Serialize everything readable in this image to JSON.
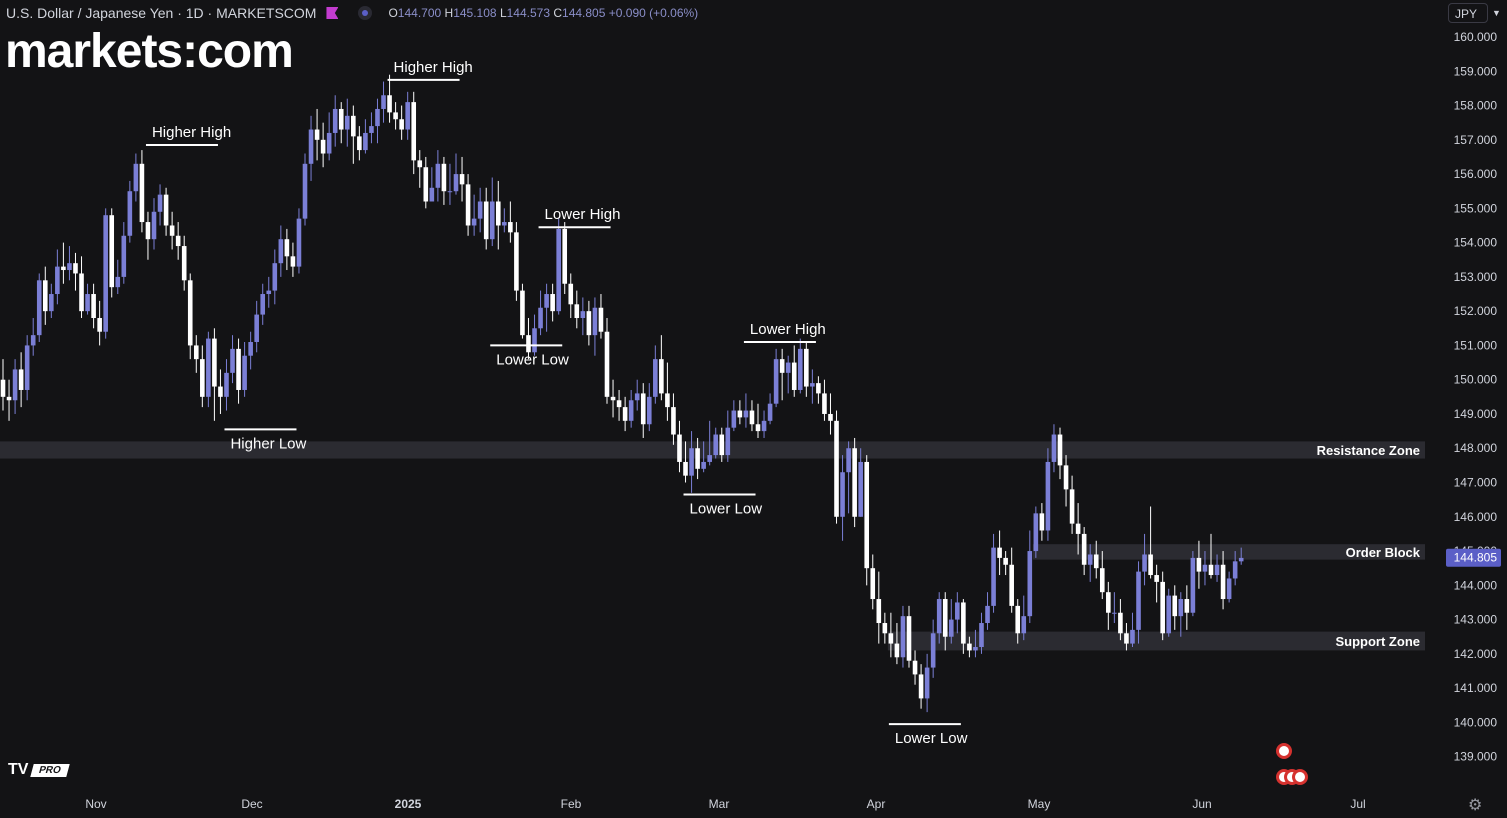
{
  "header": {
    "title": "U.S. Dollar / Japanese Yen · 1D · MARKETSCOM",
    "o_label": "O",
    "o_value": "144.700",
    "h_label": "H",
    "h_value": "145.108",
    "l_label": "L",
    "l_value": "144.573",
    "c_label": "C",
    "c_value": "144.805",
    "change": "+0.090 (+0.06%)"
  },
  "logo_text": "markets:com",
  "currency_button": "JPY",
  "tv_badge": "PRO",
  "tv_logo_text": "TV",
  "colors": {
    "background": "#131315",
    "bull": "#7b7fd6",
    "bear": "#ffffff",
    "zone": "#2b2b31",
    "price_label": "#5b5fc7"
  },
  "chart_data": {
    "type": "candlestick",
    "symbol": "USDJPY",
    "interval": "1D",
    "last_price": 144.805,
    "y_axis": {
      "ticks": [
        "160.000",
        "159.000",
        "158.000",
        "157.000",
        "156.000",
        "155.000",
        "154.000",
        "153.000",
        "152.000",
        "151.000",
        "150.000",
        "149.000",
        "148.000",
        "147.000",
        "146.000",
        "145.000",
        "144.000",
        "143.000",
        "142.000",
        "141.000",
        "140.000",
        "139.000"
      ]
    },
    "x_axis": {
      "ticks": [
        "Nov",
        "Dec",
        "2025",
        "Feb",
        "Mar",
        "Apr",
        "May",
        "Jun",
        "Jul"
      ]
    },
    "zones": [
      {
        "name": "Resistance Zone",
        "low": 147.7,
        "high": 148.2,
        "from": 0
      },
      {
        "name": "Order Block",
        "low": 144.75,
        "high": 145.2,
        "from": 171
      },
      {
        "name": "Support Zone",
        "low": 142.1,
        "high": 142.65,
        "from": 147
      }
    ],
    "annotations": [
      {
        "text": "Higher High",
        "bar": 24,
        "price": 156.85,
        "pos": "above"
      },
      {
        "text": "Higher Low",
        "bar": 37,
        "price": 148.55,
        "pos": "below"
      },
      {
        "text": "Higher High",
        "bar": 64,
        "price": 158.75,
        "pos": "above"
      },
      {
        "text": "Lower Low",
        "bar": 81,
        "price": 151.0,
        "pos": "below"
      },
      {
        "text": "Lower High",
        "bar": 89,
        "price": 154.45,
        "pos": "above"
      },
      {
        "text": "Lower Low",
        "bar": 113,
        "price": 146.65,
        "pos": "below"
      },
      {
        "text": "Lower High",
        "bar": 123,
        "price": 151.1,
        "pos": "above"
      },
      {
        "text": "Lower Low",
        "bar": 147,
        "price": 139.95,
        "pos": "below"
      }
    ],
    "candles": [
      [
        150.0,
        149.5,
        150.6,
        149.1
      ],
      [
        149.5,
        149.4,
        150.0,
        148.8
      ],
      [
        149.4,
        150.3,
        150.6,
        149.0
      ],
      [
        150.3,
        149.7,
        150.8,
        149.2
      ],
      [
        149.7,
        151.0,
        151.3,
        149.4
      ],
      [
        151.0,
        151.3,
        151.8,
        150.7
      ],
      [
        151.3,
        152.9,
        153.1,
        151.1
      ],
      [
        152.9,
        152.0,
        153.3,
        151.6
      ],
      [
        152.0,
        152.5,
        152.8,
        151.8
      ],
      [
        152.5,
        153.3,
        153.8,
        152.2
      ],
      [
        153.3,
        153.2,
        154.0,
        152.8
      ],
      [
        153.2,
        153.4,
        153.9,
        152.9
      ],
      [
        153.4,
        153.1,
        153.7,
        152.6
      ],
      [
        153.1,
        152.0,
        153.6,
        151.8
      ],
      [
        152.0,
        152.5,
        152.8,
        151.9
      ],
      [
        152.5,
        151.8,
        152.8,
        151.5
      ],
      [
        151.8,
        151.4,
        152.3,
        151.0
      ],
      [
        151.4,
        154.8,
        155.0,
        151.2
      ],
      [
        154.8,
        152.7,
        155.0,
        152.4
      ],
      [
        152.7,
        153.0,
        153.5,
        152.5
      ],
      [
        153.0,
        154.2,
        154.6,
        152.8
      ],
      [
        154.2,
        155.5,
        155.8,
        154.0
      ],
      [
        155.5,
        156.3,
        156.6,
        155.2
      ],
      [
        156.3,
        154.6,
        156.7,
        154.3
      ],
      [
        154.6,
        154.1,
        154.9,
        153.5
      ],
      [
        154.1,
        154.9,
        155.3,
        153.8
      ],
      [
        154.9,
        155.4,
        155.7,
        154.5
      ],
      [
        155.4,
        154.5,
        155.6,
        154.2
      ],
      [
        154.5,
        154.2,
        154.9,
        153.8
      ],
      [
        154.2,
        153.9,
        154.6,
        153.5
      ],
      [
        153.9,
        152.9,
        154.2,
        152.6
      ],
      [
        152.9,
        151.0,
        153.1,
        150.6
      ],
      [
        151.0,
        150.6,
        151.3,
        150.2
      ],
      [
        150.6,
        149.5,
        151.0,
        149.2
      ],
      [
        149.5,
        151.2,
        151.4,
        149.2
      ],
      [
        151.2,
        149.8,
        151.5,
        148.8
      ],
      [
        149.8,
        149.5,
        150.3,
        149.0
      ],
      [
        149.5,
        150.2,
        150.6,
        149.1
      ],
      [
        150.2,
        150.9,
        151.3,
        149.9
      ],
      [
        150.9,
        149.7,
        151.2,
        149.3
      ],
      [
        149.7,
        150.7,
        151.1,
        149.5
      ],
      [
        150.7,
        151.1,
        151.4,
        150.3
      ],
      [
        151.1,
        151.9,
        152.3,
        150.8
      ],
      [
        151.9,
        152.5,
        152.8,
        151.6
      ],
      [
        152.5,
        152.6,
        153.0,
        152.1
      ],
      [
        152.6,
        153.4,
        153.8,
        152.2
      ],
      [
        153.4,
        154.1,
        154.5,
        153.0
      ],
      [
        154.1,
        153.6,
        154.4,
        153.2
      ],
      [
        153.6,
        153.3,
        154.0,
        153.0
      ],
      [
        153.3,
        154.7,
        155.0,
        153.1
      ],
      [
        154.7,
        156.3,
        156.6,
        154.5
      ],
      [
        156.3,
        157.3,
        157.7,
        155.8
      ],
      [
        157.3,
        157.0,
        157.9,
        156.4
      ],
      [
        157.0,
        156.6,
        157.5,
        156.2
      ],
      [
        156.6,
        157.2,
        157.8,
        156.4
      ],
      [
        157.2,
        157.9,
        158.3,
        156.8
      ],
      [
        157.9,
        157.3,
        158.1,
        156.9
      ],
      [
        157.3,
        157.7,
        158.2,
        156.8
      ],
      [
        157.7,
        157.1,
        158.0,
        156.3
      ],
      [
        157.1,
        156.7,
        157.4,
        156.4
      ],
      [
        156.7,
        157.2,
        157.6,
        156.6
      ],
      [
        157.2,
        157.4,
        157.8,
        156.9
      ],
      [
        157.4,
        157.9,
        158.2,
        156.9
      ],
      [
        157.9,
        158.3,
        158.7,
        157.5
      ],
      [
        158.3,
        157.8,
        158.9,
        157.5
      ],
      [
        157.8,
        157.6,
        158.1,
        157.3
      ],
      [
        157.6,
        157.3,
        158.0,
        157.0
      ],
      [
        157.3,
        158.1,
        158.4,
        157.0
      ],
      [
        158.1,
        156.4,
        158.4,
        156.0
      ],
      [
        156.4,
        156.2,
        156.7,
        155.6
      ],
      [
        156.2,
        155.2,
        156.5,
        155.0
      ],
      [
        155.2,
        155.6,
        156.2,
        155.2
      ],
      [
        155.6,
        156.3,
        156.7,
        155.2
      ],
      [
        156.3,
        155.5,
        156.5,
        155.1
      ],
      [
        155.5,
        155.5,
        156.3,
        155.1
      ],
      [
        155.5,
        156.0,
        156.6,
        155.4
      ],
      [
        156.0,
        155.7,
        156.5,
        155.2
      ],
      [
        155.7,
        154.5,
        156.0,
        154.2
      ],
      [
        154.5,
        154.7,
        155.4,
        154.2
      ],
      [
        154.7,
        155.2,
        155.6,
        154.3
      ],
      [
        155.2,
        154.1,
        155.6,
        153.8
      ],
      [
        154.1,
        155.2,
        155.9,
        153.9
      ],
      [
        155.2,
        154.5,
        155.8,
        153.8
      ],
      [
        154.5,
        154.6,
        155.0,
        154.3
      ],
      [
        154.6,
        154.3,
        155.2,
        154.0
      ],
      [
        154.3,
        152.6,
        154.6,
        152.3
      ],
      [
        152.6,
        151.3,
        152.8,
        151.2
      ],
      [
        151.3,
        150.8,
        151.8,
        150.6
      ],
      [
        150.8,
        151.5,
        151.9,
        150.7
      ],
      [
        151.5,
        152.1,
        152.6,
        151.3
      ],
      [
        152.1,
        152.5,
        152.8,
        151.4
      ],
      [
        152.5,
        152.0,
        152.8,
        151.7
      ],
      [
        152.0,
        154.4,
        154.7,
        151.9
      ],
      [
        154.4,
        152.8,
        154.6,
        152.5
      ],
      [
        152.8,
        152.2,
        153.1,
        151.8
      ],
      [
        152.2,
        151.8,
        152.6,
        151.5
      ],
      [
        151.8,
        152.0,
        152.4,
        151.3
      ],
      [
        152.0,
        151.3,
        152.3,
        151.0
      ],
      [
        151.3,
        152.1,
        152.4,
        150.7
      ],
      [
        152.1,
        151.4,
        152.5,
        151.2
      ],
      [
        151.4,
        149.5,
        151.8,
        149.3
      ],
      [
        149.5,
        149.4,
        150.0,
        148.9
      ],
      [
        149.4,
        149.2,
        149.7,
        148.8
      ],
      [
        149.2,
        148.8,
        149.5,
        148.5
      ],
      [
        148.8,
        149.4,
        149.7,
        148.6
      ],
      [
        149.4,
        149.6,
        150.0,
        149.1
      ],
      [
        149.6,
        148.7,
        149.9,
        148.3
      ],
      [
        148.7,
        149.5,
        149.9,
        148.5
      ],
      [
        149.5,
        150.6,
        151.0,
        149.3
      ],
      [
        150.6,
        149.6,
        151.3,
        149.4
      ],
      [
        149.6,
        149.2,
        150.5,
        148.8
      ],
      [
        149.2,
        148.4,
        149.6,
        148.1
      ],
      [
        148.4,
        147.6,
        148.8,
        147.3
      ],
      [
        147.6,
        147.2,
        148.2,
        147.0
      ],
      [
        147.2,
        148.0,
        148.5,
        146.7
      ],
      [
        148.0,
        147.4,
        148.3,
        147.1
      ],
      [
        147.4,
        147.6,
        148.2,
        147.3
      ],
      [
        147.6,
        147.8,
        148.8,
        147.5
      ],
      [
        147.8,
        148.4,
        148.6,
        147.7
      ],
      [
        148.4,
        147.8,
        148.6,
        147.6
      ],
      [
        147.8,
        148.6,
        149.1,
        147.6
      ],
      [
        148.6,
        149.1,
        149.4,
        148.5
      ],
      [
        149.1,
        148.9,
        149.4,
        148.7
      ],
      [
        148.9,
        149.1,
        149.6,
        148.6
      ],
      [
        149.1,
        148.7,
        149.4,
        148.5
      ],
      [
        148.7,
        148.5,
        149.3,
        148.3
      ],
      [
        148.5,
        148.8,
        149.1,
        148.3
      ],
      [
        148.8,
        149.3,
        149.6,
        148.7
      ],
      [
        149.3,
        150.6,
        150.9,
        149.2
      ],
      [
        150.6,
        150.2,
        150.9,
        149.4
      ],
      [
        150.2,
        150.5,
        150.7,
        149.6
      ],
      [
        150.5,
        149.7,
        151.0,
        149.5
      ],
      [
        149.7,
        150.9,
        151.2,
        149.6
      ],
      [
        150.9,
        149.8,
        151.1,
        149.5
      ],
      [
        149.8,
        149.9,
        150.3,
        149.3
      ],
      [
        149.9,
        149.6,
        150.1,
        149.3
      ],
      [
        149.6,
        149.0,
        150.0,
        148.8
      ],
      [
        149.0,
        148.8,
        149.6,
        148.4
      ],
      [
        148.8,
        146.0,
        149.1,
        145.8
      ],
      [
        146.0,
        147.3,
        147.8,
        145.3
      ],
      [
        147.3,
        148.0,
        148.2,
        146.1
      ],
      [
        148.0,
        146.0,
        148.3,
        145.7
      ],
      [
        146.0,
        147.6,
        148.0,
        146.0
      ],
      [
        147.6,
        144.5,
        147.8,
        144.0
      ],
      [
        144.5,
        143.6,
        144.9,
        143.3
      ],
      [
        143.6,
        142.9,
        144.4,
        142.3
      ],
      [
        142.9,
        142.6,
        143.2,
        142.3
      ],
      [
        142.6,
        142.3,
        143.2,
        141.9
      ],
      [
        142.3,
        141.9,
        142.9,
        141.7
      ],
      [
        141.9,
        143.1,
        143.4,
        141.6
      ],
      [
        143.1,
        141.8,
        143.4,
        141.6
      ],
      [
        141.8,
        141.4,
        142.1,
        141.1
      ],
      [
        141.4,
        140.7,
        141.7,
        140.4
      ],
      [
        140.7,
        141.6,
        142.0,
        140.3
      ],
      [
        141.6,
        142.6,
        143.0,
        141.3
      ],
      [
        142.6,
        143.6,
        143.8,
        142.3
      ],
      [
        143.6,
        142.5,
        143.8,
        142.1
      ],
      [
        142.5,
        143.0,
        143.6,
        142.3
      ],
      [
        143.0,
        143.5,
        143.8,
        142.6
      ],
      [
        143.5,
        142.3,
        143.6,
        142.0
      ],
      [
        142.3,
        142.1,
        142.5,
        141.9
      ],
      [
        142.1,
        142.2,
        142.7,
        141.9
      ],
      [
        142.2,
        142.9,
        143.2,
        142.0
      ],
      [
        142.9,
        143.4,
        143.8,
        142.7
      ],
      [
        143.4,
        145.1,
        145.5,
        143.2
      ],
      [
        145.1,
        144.8,
        145.6,
        144.3
      ],
      [
        144.8,
        144.6,
        145.0,
        144.3
      ],
      [
        144.6,
        143.4,
        145.1,
        143.2
      ],
      [
        143.4,
        142.6,
        143.6,
        142.3
      ],
      [
        142.6,
        143.1,
        143.7,
        142.4
      ],
      [
        143.1,
        145.0,
        145.6,
        142.9
      ],
      [
        145.0,
        146.1,
        146.3,
        144.8
      ],
      [
        146.1,
        145.6,
        146.4,
        145.3
      ],
      [
        145.6,
        147.6,
        148.0,
        145.3
      ],
      [
        147.6,
        148.4,
        148.7,
        147.3
      ],
      [
        148.4,
        147.5,
        148.6,
        147.1
      ],
      [
        147.5,
        146.8,
        147.8,
        146.3
      ],
      [
        146.8,
        145.8,
        147.2,
        145.5
      ],
      [
        145.8,
        145.5,
        146.4,
        144.9
      ],
      [
        145.5,
        144.6,
        145.7,
        144.3
      ],
      [
        144.6,
        144.9,
        145.2,
        144.1
      ],
      [
        144.9,
        144.5,
        145.3,
        144.2
      ],
      [
        144.5,
        143.8,
        145.0,
        143.6
      ],
      [
        143.8,
        143.2,
        144.1,
        142.7
      ],
      [
        143.2,
        143.2,
        143.8,
        142.9
      ],
      [
        143.2,
        142.6,
        143.6,
        142.4
      ],
      [
        142.6,
        142.3,
        142.9,
        142.1
      ],
      [
        142.3,
        142.7,
        143.2,
        142.2
      ],
      [
        142.7,
        144.4,
        144.7,
        142.3
      ],
      [
        144.4,
        144.9,
        145.5,
        144.0
      ],
      [
        144.9,
        144.3,
        146.3,
        144.2
      ],
      [
        144.3,
        144.1,
        144.6,
        143.5
      ],
      [
        144.1,
        142.6,
        144.4,
        142.4
      ],
      [
        142.6,
        143.7,
        143.9,
        142.5
      ],
      [
        143.7,
        143.1,
        144.0,
        142.7
      ],
      [
        143.1,
        143.6,
        143.8,
        142.5
      ],
      [
        143.6,
        143.2,
        144.0,
        142.7
      ],
      [
        143.2,
        144.8,
        145.0,
        143.1
      ],
      [
        144.8,
        144.4,
        145.3,
        143.9
      ],
      [
        144.4,
        144.6,
        145.0,
        144.0
      ],
      [
        144.6,
        144.3,
        145.5,
        144.2
      ],
      [
        144.3,
        144.6,
        144.9,
        144.1
      ],
      [
        144.6,
        143.6,
        145.0,
        143.3
      ],
      [
        143.6,
        144.2,
        144.4,
        143.5
      ],
      [
        144.2,
        144.7,
        145.0,
        144.0
      ],
      [
        144.7,
        144.8,
        145.1,
        144.6
      ]
    ]
  }
}
